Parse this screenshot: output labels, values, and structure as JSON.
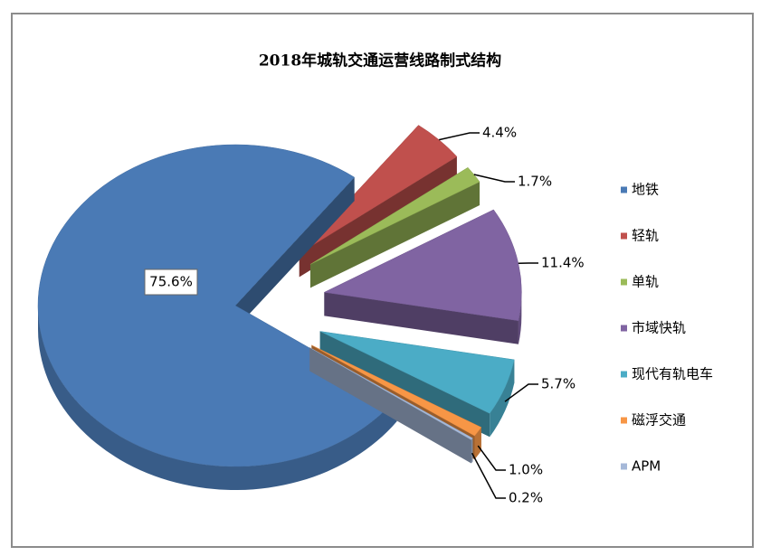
{
  "chart_data": {
    "type": "pie3d",
    "title": "2018年城轨交通运营线路制式结构",
    "categories": [
      "地铁",
      "轻轨",
      "单轨",
      "市域快轨",
      "现代有轨电车",
      "磁浮交通",
      "APM"
    ],
    "values": [
      75.6,
      4.4,
      1.7,
      11.4,
      5.7,
      1.0,
      0.2
    ],
    "value_labels": [
      "75.6%",
      "4.4%",
      "1.7%",
      "11.4%",
      "5.7%",
      "1.0%",
      "0.2%"
    ],
    "colors": [
      "#4a7ab5",
      "#c0504d",
      "#9bbb59",
      "#8064a2",
      "#4bacc6",
      "#f79646",
      "#a5b8d8"
    ],
    "legend": "right"
  }
}
